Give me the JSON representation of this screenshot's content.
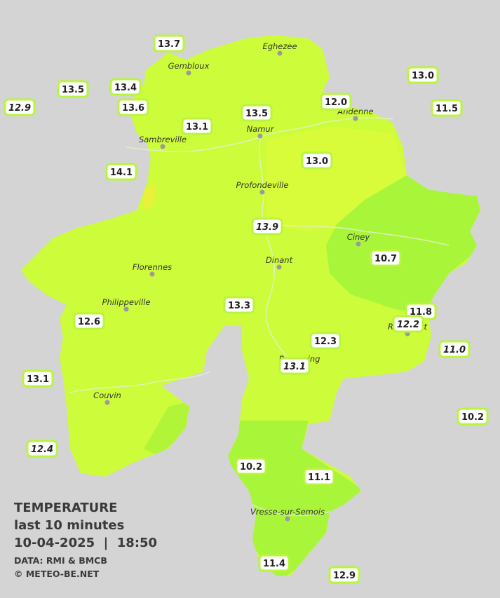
{
  "legend": {
    "title": "TEMPERATURE",
    "subtitle": "last 10 minutes",
    "timestamp": "10-04-2025  |  18:50",
    "source": "DATA: RMI & BMCB",
    "copyright": "© METEO-BE.NET"
  },
  "towns": [
    {
      "label": "Eghezee"
    },
    {
      "label": "Gembloux"
    },
    {
      "label": "Andenne"
    },
    {
      "label": "Namur"
    },
    {
      "label": "Sambreville"
    },
    {
      "label": "Profondeville"
    },
    {
      "label": "Ciney"
    },
    {
      "label": "Florennes"
    },
    {
      "label": "Dinant"
    },
    {
      "label": "Philippeville"
    },
    {
      "label": "Rochefort"
    },
    {
      "label": "Beauraing"
    },
    {
      "label": "Couvin"
    },
    {
      "label": "Vresse-sur-Semois"
    }
  ],
  "stations": [
    {
      "label": "13.7"
    },
    {
      "label": "13.5"
    },
    {
      "label": "13.4"
    },
    {
      "label": "12.9",
      "italic": true
    },
    {
      "label": "13.6"
    },
    {
      "label": "13.1"
    },
    {
      "label": "13.5"
    },
    {
      "label": "12.0"
    },
    {
      "label": "13.0"
    },
    {
      "label": "11.5"
    },
    {
      "label": "13.0"
    },
    {
      "label": "14.1"
    },
    {
      "label": "13.9",
      "italic": true
    },
    {
      "label": "10.7"
    },
    {
      "label": "13.3"
    },
    {
      "label": "11.8"
    },
    {
      "label": "12.2",
      "italic": true
    },
    {
      "label": "12.6"
    },
    {
      "label": "12.3"
    },
    {
      "label": "11.0",
      "italic": true
    },
    {
      "label": "13.1",
      "italic": true
    },
    {
      "label": "13.1"
    },
    {
      "label": "10.2"
    },
    {
      "label": "12.4",
      "italic": true
    },
    {
      "label": "10.2"
    },
    {
      "label": "11.1"
    },
    {
      "label": "11.4"
    },
    {
      "label": "12.9"
    }
  ]
}
